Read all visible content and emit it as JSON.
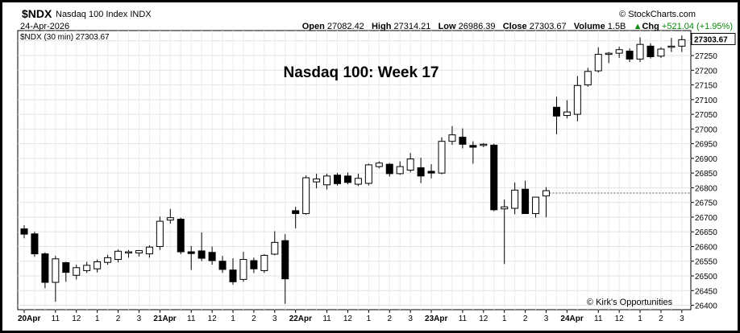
{
  "header": {
    "symbol": "$NDX",
    "name": "Nasdaq 100 Index",
    "exchange": "INDX",
    "date": "24-Apr-2026",
    "source": "© StockCharts.com",
    "open_label": "Open",
    "open": "27082.42",
    "high_label": "High",
    "high": "27314.21",
    "low_label": "Low",
    "low": "26986.39",
    "close_label": "Close",
    "close": "27303.67",
    "volume_label": "Volume",
    "volume": "1.5B",
    "chg_label": "Chg",
    "chg": "+521.04 (+1.95%)",
    "chg_color": "#0a8a0a",
    "arrow_icon": "up-arrow-icon"
  },
  "chart_data": {
    "type": "candlestick",
    "legend": "$NDX (30 min) 27303.67",
    "title": "Nasdaq 100:  Week 17",
    "annotation": "© Kirk's Opportunities",
    "last_price_label": "27303.67",
    "reference_level": 26782,
    "ylim": [
      26385,
      27335
    ],
    "y_ticks": [
      26400,
      26450,
      26500,
      26550,
      26600,
      26650,
      26700,
      26750,
      26800,
      26850,
      26900,
      26950,
      27000,
      27050,
      27100,
      27150,
      27200,
      27250,
      27300
    ],
    "x_labels": [
      {
        "i": 0,
        "label": "20Apr",
        "bold": true
      },
      {
        "i": 3,
        "label": "11"
      },
      {
        "i": 5,
        "label": "12"
      },
      {
        "i": 7,
        "label": "1"
      },
      {
        "i": 9,
        "label": "2"
      },
      {
        "i": 11,
        "label": "3"
      },
      {
        "i": 13,
        "label": "21Apr",
        "bold": true
      },
      {
        "i": 16,
        "label": "11"
      },
      {
        "i": 18,
        "label": "12"
      },
      {
        "i": 20,
        "label": "1"
      },
      {
        "i": 22,
        "label": "2"
      },
      {
        "i": 24,
        "label": "3"
      },
      {
        "i": 26,
        "label": "22Apr",
        "bold": true
      },
      {
        "i": 29,
        "label": "11"
      },
      {
        "i": 31,
        "label": "12"
      },
      {
        "i": 33,
        "label": "1"
      },
      {
        "i": 35,
        "label": "2"
      },
      {
        "i": 37,
        "label": "3"
      },
      {
        "i": 39,
        "label": "23Apr",
        "bold": true
      },
      {
        "i": 42,
        "label": "11"
      },
      {
        "i": 44,
        "label": "12"
      },
      {
        "i": 46,
        "label": "1"
      },
      {
        "i": 48,
        "label": "2"
      },
      {
        "i": 50,
        "label": "3"
      },
      {
        "i": 52,
        "label": "24Apr",
        "bold": true
      },
      {
        "i": 55,
        "label": "11"
      },
      {
        "i": 57,
        "label": "12"
      },
      {
        "i": 59,
        "label": "1"
      },
      {
        "i": 61,
        "label": "2"
      },
      {
        "i": 63,
        "label": "3"
      }
    ],
    "candles": [
      {
        "o": 26660,
        "h": 26672,
        "l": 26628,
        "c": 26642
      },
      {
        "o": 26643,
        "h": 26650,
        "l": 26565,
        "c": 26575
      },
      {
        "o": 26575,
        "h": 26580,
        "l": 26458,
        "c": 26478
      },
      {
        "o": 26478,
        "h": 26568,
        "l": 26412,
        "c": 26558
      },
      {
        "o": 26545,
        "h": 26548,
        "l": 26480,
        "c": 26512
      },
      {
        "o": 26502,
        "h": 26538,
        "l": 26488,
        "c": 26528
      },
      {
        "o": 26518,
        "h": 26548,
        "l": 26510,
        "c": 26536
      },
      {
        "o": 26524,
        "h": 26556,
        "l": 26512,
        "c": 26548
      },
      {
        "o": 26546,
        "h": 26572,
        "l": 26538,
        "c": 26562
      },
      {
        "o": 26556,
        "h": 26590,
        "l": 26546,
        "c": 26584
      },
      {
        "o": 26578,
        "h": 26588,
        "l": 26562,
        "c": 26582
      },
      {
        "o": 26578,
        "h": 26588,
        "l": 26566,
        "c": 26586
      },
      {
        "o": 26575,
        "h": 26604,
        "l": 26562,
        "c": 26598
      },
      {
        "o": 26600,
        "h": 26702,
        "l": 26588,
        "c": 26686
      },
      {
        "o": 26690,
        "h": 26728,
        "l": 26678,
        "c": 26698
      },
      {
        "o": 26693,
        "h": 26698,
        "l": 26574,
        "c": 26582
      },
      {
        "o": 26582,
        "h": 26602,
        "l": 26520,
        "c": 26576
      },
      {
        "o": 26585,
        "h": 26648,
        "l": 26550,
        "c": 26560
      },
      {
        "o": 26580,
        "h": 26600,
        "l": 26538,
        "c": 26552
      },
      {
        "o": 26550,
        "h": 26568,
        "l": 26510,
        "c": 26522
      },
      {
        "o": 26520,
        "h": 26560,
        "l": 26470,
        "c": 26480
      },
      {
        "o": 26488,
        "h": 26582,
        "l": 26480,
        "c": 26556
      },
      {
        "o": 26552,
        "h": 26562,
        "l": 26510,
        "c": 26524
      },
      {
        "o": 26518,
        "h": 26574,
        "l": 26510,
        "c": 26570
      },
      {
        "o": 26574,
        "h": 26652,
        "l": 26570,
        "c": 26614
      },
      {
        "o": 26620,
        "h": 26642,
        "l": 26405,
        "c": 26490
      },
      {
        "o": 26722,
        "h": 26735,
        "l": 26662,
        "c": 26712
      },
      {
        "o": 26712,
        "h": 26842,
        "l": 26708,
        "c": 26834
      },
      {
        "o": 26820,
        "h": 26848,
        "l": 26798,
        "c": 26830
      },
      {
        "o": 26810,
        "h": 26848,
        "l": 26794,
        "c": 26840
      },
      {
        "o": 26843,
        "h": 26850,
        "l": 26808,
        "c": 26814
      },
      {
        "o": 26840,
        "h": 26852,
        "l": 26812,
        "c": 26818
      },
      {
        "o": 26812,
        "h": 26848,
        "l": 26806,
        "c": 26832
      },
      {
        "o": 26815,
        "h": 26882,
        "l": 26808,
        "c": 26878
      },
      {
        "o": 26872,
        "h": 26890,
        "l": 26866,
        "c": 26884
      },
      {
        "o": 26880,
        "h": 26884,
        "l": 26838,
        "c": 26848
      },
      {
        "o": 26848,
        "h": 26890,
        "l": 26844,
        "c": 26872
      },
      {
        "o": 26860,
        "h": 26918,
        "l": 26852,
        "c": 26898
      },
      {
        "o": 26868,
        "h": 26902,
        "l": 26816,
        "c": 26840
      },
      {
        "o": 26856,
        "h": 26880,
        "l": 26832,
        "c": 26850
      },
      {
        "o": 26850,
        "h": 26972,
        "l": 26846,
        "c": 26958
      },
      {
        "o": 26958,
        "h": 27010,
        "l": 26946,
        "c": 26980
      },
      {
        "o": 26972,
        "h": 27002,
        "l": 26934,
        "c": 26948
      },
      {
        "o": 26944,
        "h": 26958,
        "l": 26882,
        "c": 26938
      },
      {
        "o": 26944,
        "h": 26952,
        "l": 26938,
        "c": 26948
      },
      {
        "o": 26945,
        "h": 26950,
        "l": 26720,
        "c": 26725
      },
      {
        "o": 26728,
        "h": 26760,
        "l": 26540,
        "c": 26735
      },
      {
        "o": 26730,
        "h": 26818,
        "l": 26710,
        "c": 26792
      },
      {
        "o": 26795,
        "h": 26824,
        "l": 26712,
        "c": 26712
      },
      {
        "o": 26712,
        "h": 26768,
        "l": 26698,
        "c": 26768
      },
      {
        "o": 26772,
        "h": 26802,
        "l": 26700,
        "c": 26790
      },
      {
        "o": 27074,
        "h": 27110,
        "l": 26982,
        "c": 27044
      },
      {
        "o": 27046,
        "h": 27098,
        "l": 27036,
        "c": 27058
      },
      {
        "o": 27050,
        "h": 27180,
        "l": 27026,
        "c": 27148
      },
      {
        "o": 27150,
        "h": 27208,
        "l": 27144,
        "c": 27196
      },
      {
        "o": 27198,
        "h": 27278,
        "l": 27192,
        "c": 27254
      },
      {
        "o": 27254,
        "h": 27262,
        "l": 27224,
        "c": 27258
      },
      {
        "o": 27258,
        "h": 27280,
        "l": 27242,
        "c": 27270
      },
      {
        "o": 27265,
        "h": 27274,
        "l": 27228,
        "c": 27238
      },
      {
        "o": 27238,
        "h": 27312,
        "l": 27228,
        "c": 27288
      },
      {
        "o": 27282,
        "h": 27292,
        "l": 27240,
        "c": 27246
      },
      {
        "o": 27248,
        "h": 27278,
        "l": 27242,
        "c": 27272
      },
      {
        "o": 27278,
        "h": 27310,
        "l": 27262,
        "c": 27282
      },
      {
        "o": 27282,
        "h": 27318,
        "l": 27262,
        "c": 27304
      }
    ]
  }
}
